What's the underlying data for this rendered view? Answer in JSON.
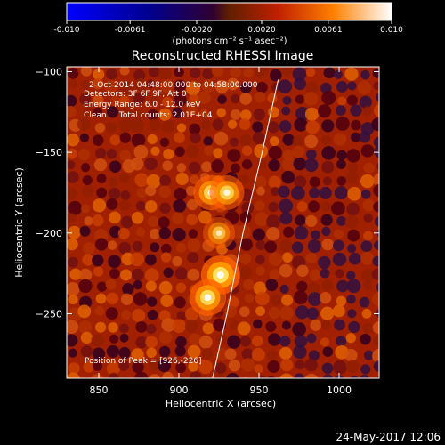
{
  "colorbar": {
    "ticks": [
      "-0.010",
      "-0.0061",
      "-0.0020",
      "0.0020",
      "0.0061",
      "0.010"
    ],
    "tick_values": [
      -0.01,
      -0.0061,
      -0.002,
      0.002,
      0.0061,
      0.01
    ],
    "range": [
      -0.01,
      0.01
    ],
    "unit_label": "(photons cm⁻² s⁻¹ asec⁻²)"
  },
  "plot": {
    "title": "Reconstructed RHESSI Image",
    "annotation_lines": [
      "2-Oct-2014 04:48:00.000 to 04:58:00.000",
      "Detectors: 3F 6F 9F, Att 0",
      "Energy Range: 6.0 - 12.0 keV",
      "Clean     Total counts: 2.01E+04"
    ],
    "peak_label": "Position of Peak = [926,-226]",
    "footer_date": "24-May-2017 12:06"
  },
  "chart_data": {
    "type": "heatmap",
    "title": "Reconstructed RHESSI Image",
    "xlabel": "Heliocentric X (arcsec)",
    "ylabel": "Heliocentric Y (arcsec)",
    "xlim": [
      830,
      1025
    ],
    "ylim": [
      -290,
      -97
    ],
    "x_ticks": [
      850,
      900,
      950,
      1000
    ],
    "y_ticks": [
      -100,
      -150,
      -200,
      -250
    ],
    "x_tick_labels": [
      "850",
      "900",
      "950",
      "1000"
    ],
    "y_tick_labels": [
      "−100",
      "−150",
      "−200",
      "−250"
    ],
    "colormap": "heat",
    "peak": [
      926,
      -226
    ],
    "sources": [
      {
        "x": 920,
        "y": -175,
        "intensity": 0.75
      },
      {
        "x": 930,
        "y": -175,
        "intensity": 0.72
      },
      {
        "x": 925,
        "y": -200,
        "intensity": 0.55
      },
      {
        "x": 926,
        "y": -226,
        "intensity": 1.0
      },
      {
        "x": 918,
        "y": -240,
        "intensity": 0.85
      }
    ],
    "limb": [
      [
        921,
        -290
      ],
      [
        930,
        -250
      ],
      [
        940,
        -200
      ],
      [
        952,
        -150
      ],
      [
        962,
        -105
      ]
    ]
  }
}
